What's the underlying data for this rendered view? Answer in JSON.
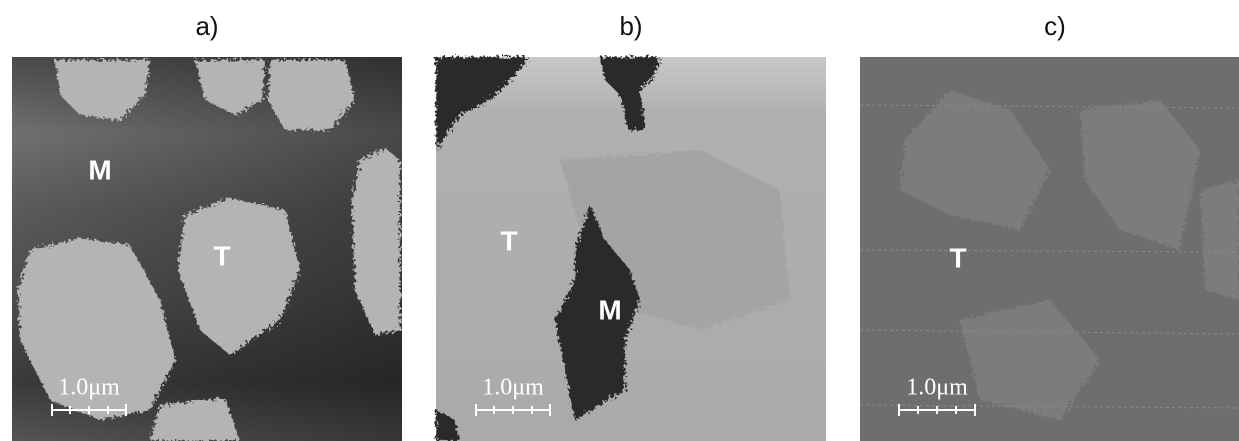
{
  "panels": [
    {
      "label": "a)",
      "annotations": [
        "M",
        "T"
      ],
      "scale_bar": "1.0μm"
    },
    {
      "label": "b)",
      "annotations": [
        "T",
        "M"
      ],
      "scale_bar": "1.0μm"
    },
    {
      "label": "c)",
      "annotations": [
        "T"
      ],
      "scale_bar": "1.0μm"
    }
  ]
}
